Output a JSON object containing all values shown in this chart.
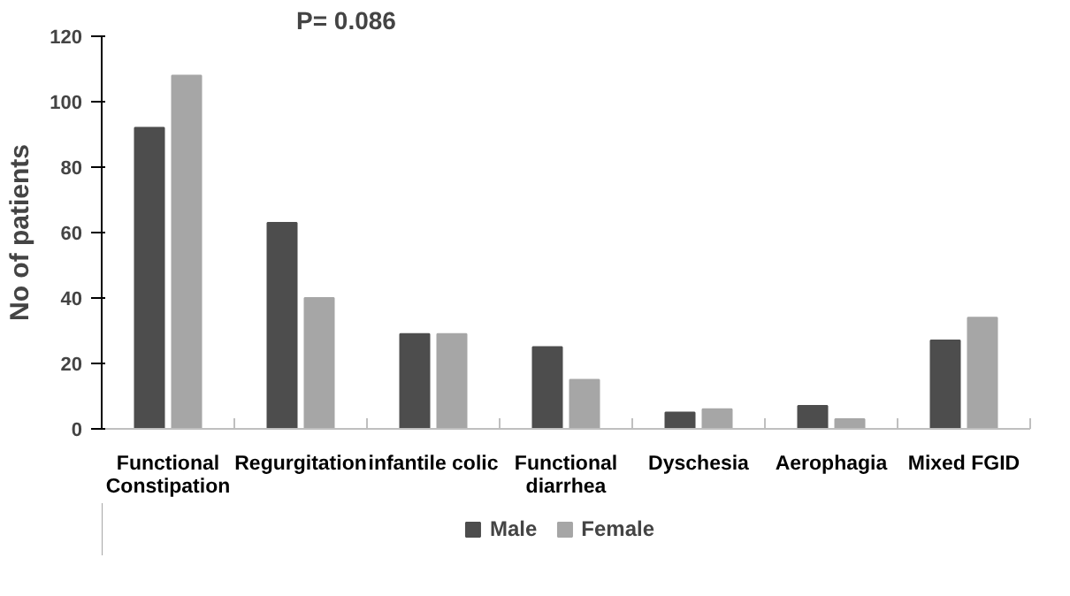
{
  "chart_data": {
    "type": "bar",
    "ylabel": "No of patients",
    "categories": [
      "Functional Constipation",
      "Regurgitation",
      "infantile colic",
      "Functional diarrhea",
      "Dyschesia",
      "Aerophagia",
      "Mixed FGID"
    ],
    "series": [
      {
        "name": "Male",
        "color": "#4d4d4d",
        "values": [
          92,
          63,
          29,
          25,
          5,
          7,
          27
        ]
      },
      {
        "name": "Female",
        "color": "#a6a6a6",
        "values": [
          108,
          40,
          29,
          15,
          6,
          3,
          34
        ]
      }
    ],
    "ylim": [
      0,
      120
    ],
    "yticks": [
      0,
      20,
      40,
      60,
      80,
      100,
      120
    ],
    "grid": false,
    "legend": "bottom",
    "annotations": [
      "P= 0.086"
    ]
  }
}
